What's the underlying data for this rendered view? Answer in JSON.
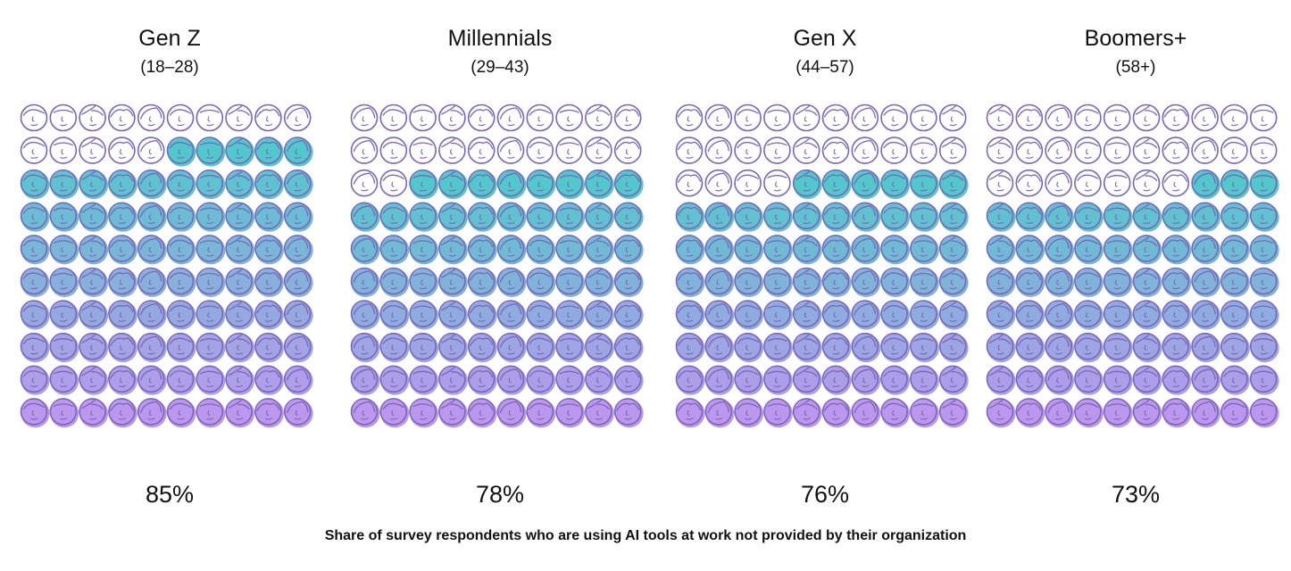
{
  "chart_data": {
    "type": "waffle",
    "grid": {
      "rows": 10,
      "cols": 10
    },
    "fill_order": "bottom-to-top, left-to-right",
    "caption": "Share of survey respondents who are using AI tools at work not provided by their organization",
    "colors": {
      "outline": "#7b66b8",
      "fill_top": "#3fc2c6",
      "fill_bottom": "#b58cec"
    },
    "groups": [
      {
        "name": "Gen Z",
        "range": "(18–28)",
        "value": 85,
        "label": "85%"
      },
      {
        "name": "Millennials",
        "range": "(29–43)",
        "value": 78,
        "label": "78%"
      },
      {
        "name": "Gen X",
        "range": "(44–57)",
        "value": 76,
        "label": "76%"
      },
      {
        "name": "Boomers+",
        "range": "(58+)",
        "value": 73,
        "label": "73%"
      }
    ]
  }
}
